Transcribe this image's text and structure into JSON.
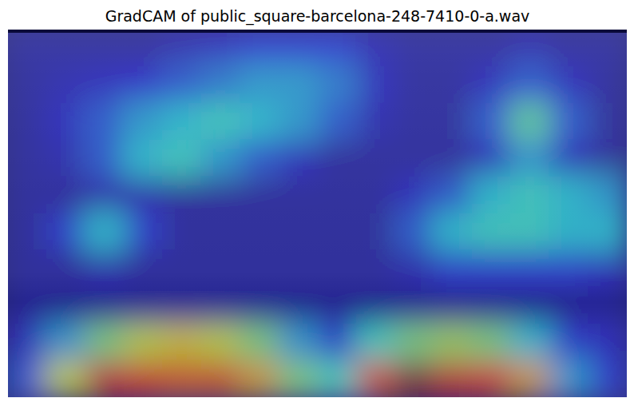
{
  "chart_data": {
    "type": "heatmap",
    "title": "GradCAM of public_square-barcelona-248-7410-0-a.wav",
    "tick_labels": false,
    "value_range": [
      0,
      1
    ],
    "cells": [
      [
        0.05,
        0.05,
        0.05,
        0.05,
        0.08,
        0.1,
        0.15,
        0.15,
        0.15,
        0.08,
        0.05,
        0.05,
        0.05,
        0.08,
        0.05,
        0.05
      ],
      [
        0.05,
        0.08,
        0.1,
        0.12,
        0.2,
        0.25,
        0.3,
        0.3,
        0.25,
        0.1,
        0.05,
        0.05,
        0.1,
        0.2,
        0.1,
        0.05
      ],
      [
        0.05,
        0.1,
        0.2,
        0.3,
        0.35,
        0.4,
        0.35,
        0.3,
        0.2,
        0.08,
        0.05,
        0.05,
        0.2,
        0.45,
        0.2,
        0.05
      ],
      [
        0.05,
        0.08,
        0.2,
        0.35,
        0.4,
        0.3,
        0.2,
        0.1,
        0.05,
        0.05,
        0.05,
        0.05,
        0.1,
        0.3,
        0.1,
        0.05
      ],
      [
        0.05,
        0.05,
        0.08,
        0.08,
        0.05,
        0.05,
        0.05,
        0.05,
        0.05,
        0.05,
        0.1,
        0.2,
        0.35,
        0.4,
        0.35,
        0.3
      ],
      [
        0.05,
        0.15,
        0.35,
        0.15,
        0.05,
        0.05,
        0.05,
        0.05,
        0.05,
        0.05,
        0.2,
        0.35,
        0.4,
        0.4,
        0.35,
        0.35
      ],
      [
        0.05,
        0.05,
        0.08,
        0.05,
        0.05,
        0.05,
        0.05,
        0.05,
        0.05,
        0.05,
        0.08,
        0.15,
        0.15,
        0.15,
        0.15,
        0.1
      ],
      [
        0.05,
        0.05,
        0.05,
        0.05,
        0.05,
        0.05,
        0.05,
        0.05,
        0.05,
        0.05,
        0.05,
        0.05,
        0.05,
        0.05,
        0.05,
        0.05
      ],
      [
        0.1,
        0.3,
        0.5,
        0.6,
        0.65,
        0.6,
        0.5,
        0.3,
        0.15,
        0.4,
        0.5,
        0.55,
        0.5,
        0.35,
        0.15,
        0.1
      ],
      [
        0.2,
        0.6,
        0.9,
        0.85,
        0.8,
        0.8,
        0.7,
        0.5,
        0.4,
        0.8,
        1.0,
        0.9,
        0.85,
        0.7,
        0.3,
        0.15
      ]
    ]
  }
}
